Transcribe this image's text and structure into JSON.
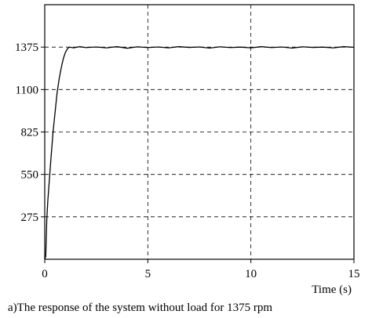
{
  "chart_data": {
    "type": "line",
    "title": "",
    "caption": "a)The response of the system without load for 1375 rpm",
    "xlabel": "Time (s)",
    "ylabel": "",
    "xlim": [
      0,
      15
    ],
    "ylim": [
      0,
      1650
    ],
    "x_ticks": [
      "0",
      "5",
      "10",
      "15"
    ],
    "y_ticks": [
      "275",
      "550",
      "825",
      "1100",
      "1375"
    ],
    "x_tick_values": [
      0,
      5,
      10,
      15
    ],
    "y_tick_values": [
      275,
      550,
      825,
      1100,
      1375
    ],
    "grid": true,
    "grid_style": "dashed",
    "series": [
      {
        "name": "",
        "color": "#000000",
        "x": [
          0,
          0.05,
          0.1,
          0.15,
          0.2,
          0.3,
          0.4,
          0.5,
          0.6,
          0.7,
          0.8,
          0.9,
          1.0,
          1.1,
          1.2,
          1.4,
          1.7,
          2,
          2.5,
          3,
          3.5,
          4,
          4.5,
          5,
          5.5,
          6,
          6.5,
          7,
          7.5,
          8,
          8.5,
          9,
          9.5,
          10,
          10.5,
          11,
          11.5,
          12,
          12.5,
          13,
          13.5,
          14,
          14.5,
          15
        ],
        "y": [
          0,
          20,
          260,
          380,
          470,
          650,
          820,
          950,
          1080,
          1170,
          1240,
          1300,
          1340,
          1365,
          1375,
          1370,
          1378,
          1372,
          1376,
          1370,
          1378,
          1368,
          1377,
          1372,
          1376,
          1370,
          1378,
          1373,
          1376,
          1369,
          1377,
          1372,
          1375,
          1370,
          1378,
          1372,
          1376,
          1369,
          1377,
          1373,
          1375,
          1370,
          1378,
          1374
        ]
      }
    ]
  }
}
